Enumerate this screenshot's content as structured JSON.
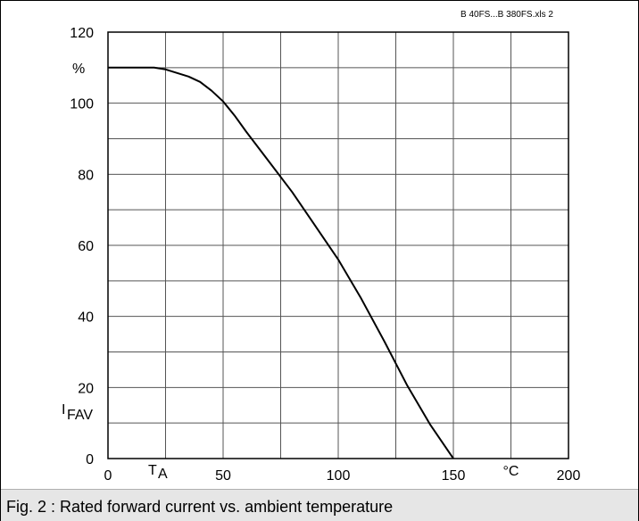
{
  "caption": "Fig. 2 : Rated forward current vs. ambient temperature",
  "file_label": "B 40FS...B 380FS.xls 2",
  "chart_data": {
    "type": "line",
    "xlim": [
      0,
      200
    ],
    "ylim": [
      0,
      120
    ],
    "x_ticks": [
      0,
      50,
      100,
      150,
      200
    ],
    "y_ticks": [
      0,
      20,
      40,
      60,
      80,
      100,
      120
    ],
    "x_tick_labels": [
      "0",
      "50",
      "100",
      "150",
      "200"
    ],
    "y_tick_labels": [
      "0",
      "20",
      "40",
      "60",
      "80",
      "100",
      "120"
    ],
    "x_grid_step": 25,
    "y_grid_step": 10,
    "grid": true,
    "xlabel_symbol": "T",
    "xlabel_subscript": "A",
    "xunit": "°C",
    "ylabel_symbol": "I",
    "ylabel_subscript": "FAV",
    "yunit": "%",
    "series": [
      {
        "x": [
          0,
          5,
          10,
          15,
          20,
          25,
          30,
          35,
          40,
          45,
          50,
          55,
          60,
          70,
          80,
          90,
          100,
          110,
          120,
          130,
          140,
          150
        ],
        "y": [
          110,
          110,
          110,
          110,
          110,
          109.5,
          108.5,
          107.5,
          106,
          103.5,
          100.5,
          96.5,
          92,
          83.5,
          75,
          65.5,
          56,
          45,
          33,
          20.5,
          9.5,
          0
        ],
        "color": "#000000"
      }
    ]
  }
}
